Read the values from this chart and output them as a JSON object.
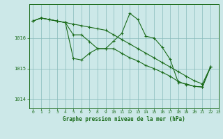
{
  "title": "Graphe pression niveau de la mer (hPa)",
  "bg_color": "#cce8e8",
  "plot_bg_color": "#cce8e8",
  "line_color": "#1a6b1a",
  "grid_color": "#88bbbb",
  "text_color": "#1a6b1a",
  "xlim": [
    -0.5,
    23
  ],
  "ylim": [
    1013.7,
    1017.1
  ],
  "yticks": [
    1014,
    1015,
    1016
  ],
  "xticks": [
    0,
    1,
    2,
    3,
    4,
    5,
    6,
    7,
    8,
    9,
    10,
    11,
    12,
    13,
    14,
    15,
    16,
    17,
    18,
    19,
    20,
    21,
    22,
    23
  ],
  "line1": [
    1016.55,
    1016.65,
    1016.6,
    1016.55,
    1016.5,
    1016.45,
    1016.4,
    1016.35,
    1016.3,
    1016.25,
    1016.1,
    1015.95,
    1015.8,
    1015.65,
    1015.5,
    1015.35,
    1015.2,
    1015.05,
    1014.9,
    1014.75,
    1014.6,
    1014.5,
    1015.05,
    null
  ],
  "line2": [
    1016.55,
    1016.65,
    1016.6,
    1016.55,
    1016.5,
    1015.33,
    1015.28,
    1015.5,
    1015.65,
    1015.65,
    1015.9,
    1016.15,
    1016.8,
    1016.6,
    1016.05,
    1016.0,
    1015.7,
    1015.3,
    1014.55,
    1014.5,
    1014.42,
    1014.4,
    1015.05,
    null
  ],
  "line3": [
    1016.55,
    1016.65,
    1016.6,
    1016.55,
    1016.5,
    1016.1,
    1016.1,
    1015.88,
    1015.65,
    1015.65,
    1015.65,
    1015.5,
    1015.35,
    1015.25,
    1015.1,
    1015.0,
    1014.88,
    1014.75,
    1014.58,
    1014.48,
    1014.42,
    1014.4,
    1015.05,
    null
  ]
}
